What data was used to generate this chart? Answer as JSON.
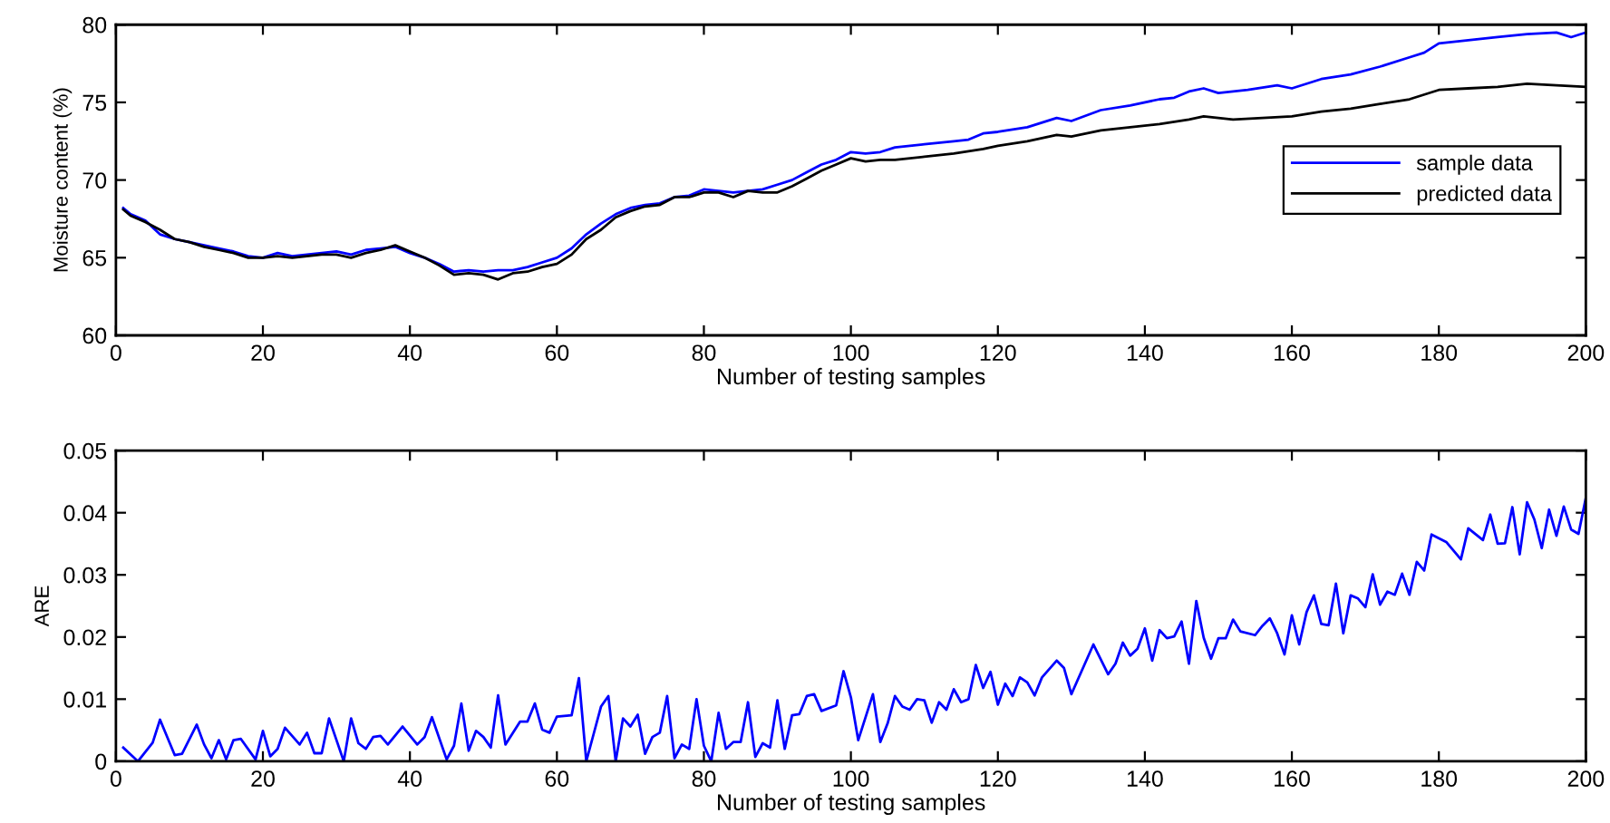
{
  "chart_data": [
    {
      "type": "line",
      "xlabel": "Number of testing samples",
      "ylabel": "Moisture content (%)",
      "xlim": [
        0,
        200
      ],
      "ylim": [
        60,
        80
      ],
      "xticks": [
        0,
        20,
        40,
        60,
        80,
        100,
        120,
        140,
        160,
        180,
        200
      ],
      "yticks": [
        60,
        65,
        70,
        75,
        80
      ],
      "grid": false,
      "legend": "right",
      "marker": "none",
      "line_style": "solid",
      "series": [
        {
          "name": "sample data",
          "color": "#0000ff",
          "x": [
            1,
            2,
            4,
            6,
            8,
            10,
            12,
            14,
            16,
            18,
            20,
            22,
            24,
            26,
            28,
            30,
            32,
            34,
            36,
            38,
            40,
            42,
            44,
            46,
            48,
            50,
            52,
            54,
            56,
            58,
            60,
            62,
            64,
            66,
            68,
            70,
            72,
            74,
            76,
            78,
            80,
            82,
            84,
            86,
            88,
            90,
            92,
            94,
            96,
            98,
            100,
            102,
            104,
            106,
            110,
            114,
            116,
            118,
            120,
            124,
            128,
            130,
            134,
            138,
            142,
            144,
            146,
            148,
            150,
            154,
            158,
            160,
            164,
            168,
            172,
            176,
            178,
            180,
            184,
            188,
            192,
            196,
            198,
            200
          ],
          "values": [
            68.2,
            67.8,
            67.4,
            66.5,
            66.2,
            66.0,
            65.8,
            65.6,
            65.4,
            65.1,
            65.0,
            65.3,
            65.1,
            65.2,
            65.3,
            65.4,
            65.2,
            65.5,
            65.6,
            65.7,
            65.3,
            65.0,
            64.6,
            64.1,
            64.2,
            64.1,
            64.2,
            64.2,
            64.4,
            64.7,
            65.0,
            65.6,
            66.5,
            67.2,
            67.8,
            68.2,
            68.4,
            68.5,
            68.9,
            69.0,
            69.4,
            69.3,
            69.2,
            69.3,
            69.4,
            69.7,
            70.0,
            70.5,
            71.0,
            71.3,
            71.8,
            71.7,
            71.8,
            72.1,
            72.3,
            72.5,
            72.6,
            73.0,
            73.1,
            73.4,
            74.0,
            73.8,
            74.5,
            74.8,
            75.2,
            75.3,
            75.7,
            75.9,
            75.6,
            75.8,
            76.1,
            75.9,
            76.5,
            76.8,
            77.3,
            77.9,
            78.2,
            78.8,
            79.0,
            79.2,
            79.4,
            79.5,
            79.2,
            79.5
          ]
        },
        {
          "name": "predicted data",
          "color": "#000000",
          "x": [
            1,
            2,
            4,
            6,
            8,
            10,
            12,
            14,
            16,
            18,
            20,
            22,
            24,
            26,
            28,
            30,
            32,
            34,
            36,
            38,
            40,
            42,
            44,
            46,
            48,
            50,
            52,
            54,
            56,
            58,
            60,
            62,
            64,
            66,
            68,
            70,
            72,
            74,
            76,
            78,
            80,
            82,
            84,
            86,
            88,
            90,
            92,
            94,
            96,
            98,
            100,
            102,
            104,
            106,
            110,
            114,
            118,
            120,
            124,
            128,
            130,
            134,
            138,
            142,
            146,
            148,
            152,
            156,
            160,
            164,
            168,
            172,
            176,
            180,
            184,
            188,
            192,
            196,
            200
          ],
          "values": [
            68.1,
            67.7,
            67.3,
            66.8,
            66.2,
            66.0,
            65.7,
            65.5,
            65.3,
            65.0,
            65.0,
            65.1,
            65.0,
            65.1,
            65.2,
            65.2,
            65.0,
            65.3,
            65.5,
            65.8,
            65.4,
            65.0,
            64.5,
            63.9,
            64.0,
            63.9,
            63.6,
            64.0,
            64.1,
            64.4,
            64.6,
            65.2,
            66.2,
            66.8,
            67.6,
            68.0,
            68.3,
            68.4,
            68.9,
            68.9,
            69.2,
            69.2,
            68.9,
            69.3,
            69.2,
            69.2,
            69.6,
            70.1,
            70.6,
            71.0,
            71.4,
            71.2,
            71.3,
            71.3,
            71.5,
            71.7,
            72.0,
            72.2,
            72.5,
            72.9,
            72.8,
            73.2,
            73.4,
            73.6,
            73.9,
            74.1,
            73.9,
            74.0,
            74.1,
            74.4,
            74.6,
            74.9,
            75.2,
            75.8,
            75.9,
            76.0,
            76.2,
            76.1,
            76.0
          ]
        }
      ]
    },
    {
      "type": "line",
      "xlabel": "Number of testing samples",
      "ylabel": "ARE",
      "xlim": [
        0,
        200
      ],
      "ylim": [
        0,
        0.05
      ],
      "xticks": [
        0,
        20,
        40,
        60,
        80,
        100,
        120,
        140,
        160,
        180,
        200
      ],
      "yticks": [
        0,
        0.01,
        0.02,
        0.03,
        0.04,
        0.05
      ],
      "grid": false,
      "marker": "none",
      "line_style": "solid",
      "series": [
        {
          "color": "#0000ff",
          "x": [
            1,
            3,
            5,
            6,
            8,
            9,
            11,
            12,
            13,
            14,
            15,
            16,
            17,
            19,
            20,
            21,
            22,
            23,
            25,
            26,
            27,
            28,
            29,
            31,
            32,
            33,
            34,
            35,
            36,
            37,
            39,
            41,
            42,
            43,
            45,
            46,
            47,
            48,
            49,
            50,
            51,
            52,
            53,
            55,
            56,
            57,
            58,
            59,
            60,
            62,
            63,
            64,
            65,
            66,
            67,
            68,
            69,
            70,
            71,
            72,
            73,
            74,
            75,
            76,
            77,
            78,
            79,
            80,
            81,
            82,
            83,
            84,
            85,
            86,
            87,
            88,
            89,
            90,
            91,
            92,
            93,
            94,
            95,
            96,
            98,
            99,
            100,
            101,
            103,
            104,
            105,
            106,
            107,
            108,
            109,
            110,
            111,
            112,
            113,
            114,
            115,
            116,
            117,
            118,
            119,
            120,
            121,
            122,
            123,
            124,
            125,
            126,
            128,
            129,
            130,
            133,
            135,
            136,
            137,
            138,
            139,
            140,
            141,
            142,
            143,
            144,
            145,
            146,
            147,
            148,
            149,
            150,
            151,
            152,
            153,
            155,
            156,
            157,
            158,
            159,
            160,
            161,
            162,
            163,
            164,
            165,
            166,
            167,
            168,
            169,
            170,
            171,
            172,
            173,
            174,
            175,
            176,
            177,
            178,
            179,
            181,
            183,
            184,
            186,
            187,
            188,
            189,
            190,
            191,
            192,
            193,
            194,
            195,
            196,
            197,
            198,
            199,
            200
          ],
          "values": [
            0.0022,
            0.0,
            0.003,
            0.0067,
            0.001,
            0.0012,
            0.0059,
            0.0027,
            0.0005,
            0.0034,
            0.0003,
            0.0034,
            0.0036,
            0.0003,
            0.0049,
            0.0008,
            0.002,
            0.0054,
            0.0027,
            0.0046,
            0.0013,
            0.0013,
            0.0069,
            0.0,
            0.0069,
            0.0029,
            0.002,
            0.0039,
            0.0041,
            0.0027,
            0.0056,
            0.0027,
            0.0039,
            0.0071,
            0.0003,
            0.0025,
            0.0093,
            0.0017,
            0.0049,
            0.0039,
            0.0022,
            0.0106,
            0.0027,
            0.0064,
            0.0064,
            0.0093,
            0.0051,
            0.0046,
            0.0072,
            0.0074,
            0.0134,
            0.0,
            0.0044,
            0.0088,
            0.0105,
            0.0,
            0.0069,
            0.0056,
            0.0075,
            0.0012,
            0.0039,
            0.0046,
            0.0105,
            0.0005,
            0.0027,
            0.002,
            0.01,
            0.0025,
            0.0,
            0.0078,
            0.002,
            0.0031,
            0.0031,
            0.0095,
            0.0007,
            0.0029,
            0.0022,
            0.0098,
            0.002,
            0.0074,
            0.0076,
            0.0105,
            0.0108,
            0.0081,
            0.009,
            0.0145,
            0.0103,
            0.0034,
            0.0108,
            0.0031,
            0.0061,
            0.0105,
            0.0088,
            0.0083,
            0.01,
            0.0098,
            0.0062,
            0.0095,
            0.0083,
            0.0116,
            0.0095,
            0.01,
            0.0155,
            0.0118,
            0.0144,
            0.0091,
            0.0125,
            0.0105,
            0.0135,
            0.0127,
            0.0106,
            0.0135,
            0.0162,
            0.015,
            0.0108,
            0.0188,
            0.014,
            0.0157,
            0.0191,
            0.017,
            0.0181,
            0.0214,
            0.0162,
            0.0211,
            0.0198,
            0.0201,
            0.0225,
            0.0157,
            0.0258,
            0.0199,
            0.0165,
            0.0198,
            0.0198,
            0.0228,
            0.0209,
            0.0203,
            0.0218,
            0.023,
            0.0206,
            0.0172,
            0.0235,
            0.0188,
            0.024,
            0.0267,
            0.0221,
            0.0219,
            0.0286,
            0.0206,
            0.0267,
            0.0262,
            0.0248,
            0.0301,
            0.0252,
            0.0273,
            0.0268,
            0.0302,
            0.0268,
            0.0321,
            0.0307,
            0.0365,
            0.0353,
            0.0325,
            0.0375,
            0.0356,
            0.0397,
            0.035,
            0.0351,
            0.0409,
            0.0333,
            0.0417,
            0.0389,
            0.0343,
            0.0405,
            0.0363,
            0.041,
            0.0373,
            0.0366,
            0.0424
          ]
        }
      ]
    }
  ]
}
